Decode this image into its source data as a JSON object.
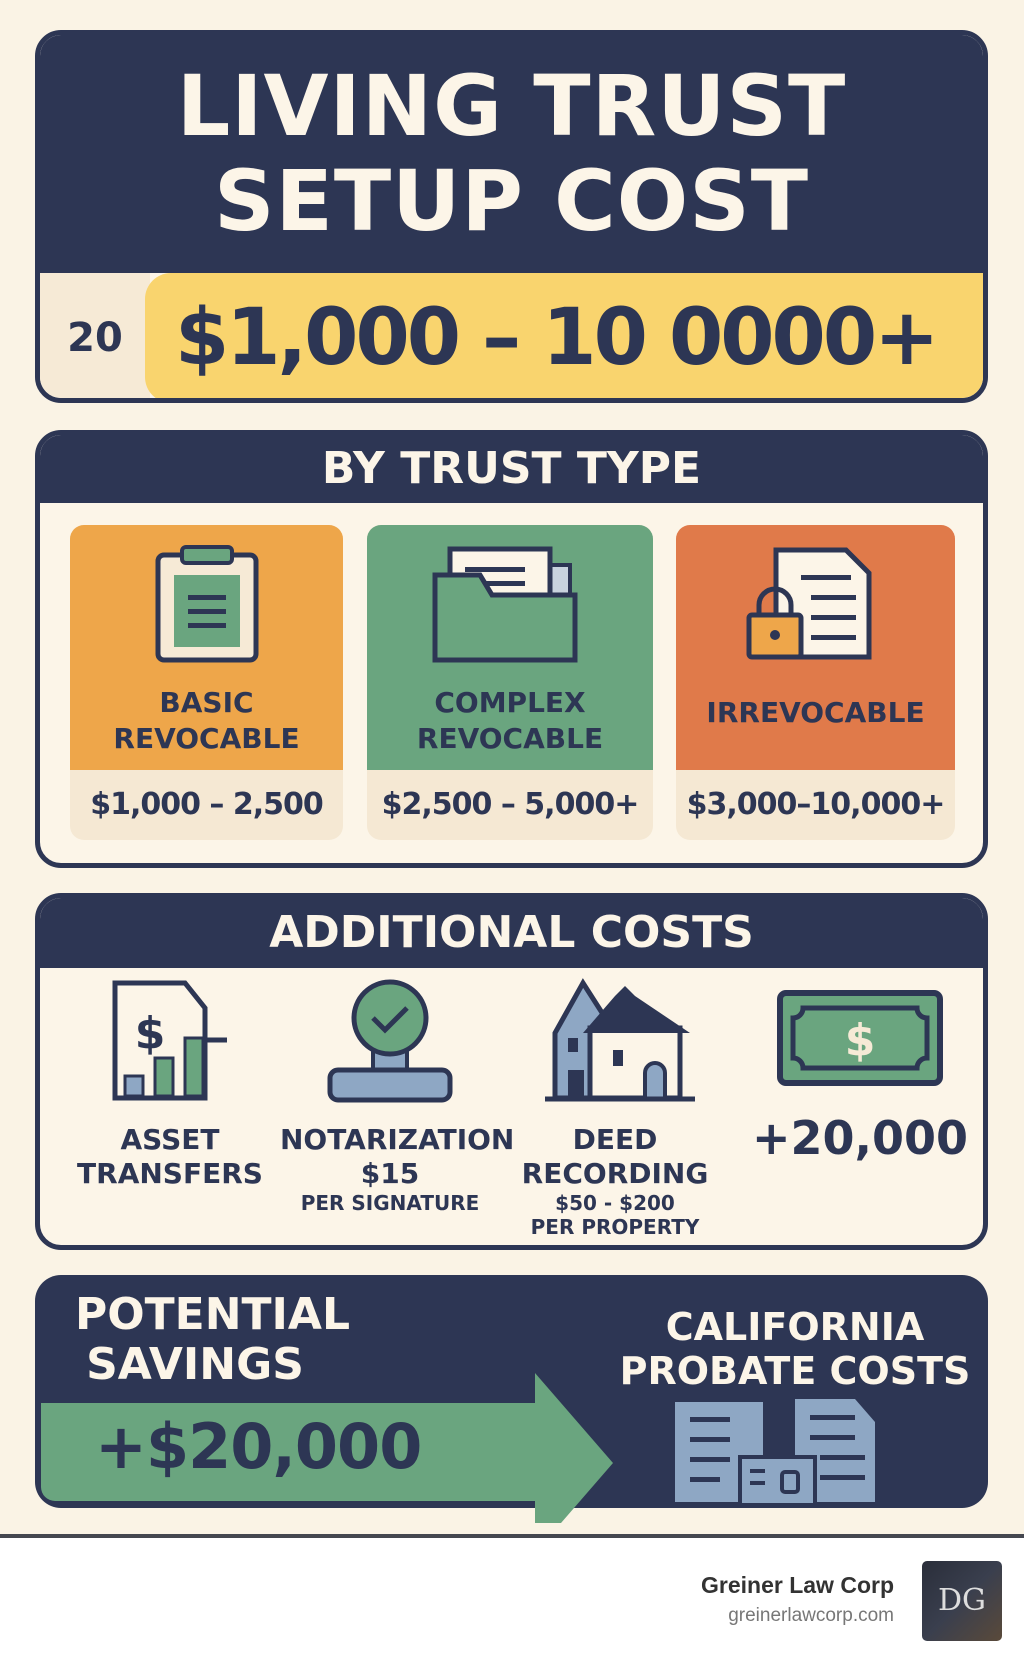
{
  "header": {
    "title_line1": "LIVING TRUST",
    "title_line2": "SETUP COST",
    "prefix": "20",
    "price_range": "$1,000 – 10 0000+"
  },
  "trust_types": {
    "heading": "BY TRUST TYPE",
    "cards": [
      {
        "label_line1": "BASIC",
        "label_line2": "REVOCABLE",
        "price": "$1,000 – 2,500",
        "icon": "clipboard-icon",
        "color": "#eea64a"
      },
      {
        "label_line1": "COMPLEX",
        "label_line2": "REVOCABLE",
        "price": "$2,500 – 5,000+",
        "icon": "folder-documents-icon",
        "color": "#6aa57f"
      },
      {
        "label_line1": "IRREVOCABLE",
        "label_line2": "",
        "price": "$3,000–10,000+",
        "icon": "locked-document-icon",
        "color": "#e07a4a"
      }
    ]
  },
  "additional": {
    "heading": "ADDITIONAL COSTS",
    "items": [
      {
        "line1": "ASSET",
        "line2": "TRANSFERS",
        "icon": "document-chart-icon"
      },
      {
        "line1": "NOTARIZATION",
        "line2": "$15",
        "line3": "PER SIGNATURE",
        "icon": "stamp-icon"
      },
      {
        "line1": "DEED",
        "line2": "RECORDING",
        "line3": "$50 - $200",
        "line4": "PER PROPERTY",
        "icon": "houses-icon"
      },
      {
        "line1": "+20,000",
        "icon": "banknote-icon"
      }
    ]
  },
  "savings": {
    "label_line1": "POTENTIAL",
    "label_line2": "SAVINGS",
    "amount": "+$20,000",
    "right_line1": "CALIFORNIA",
    "right_line2": "PROBATE COSTS",
    "icon": "documents-icon"
  },
  "footer": {
    "company": "Greiner Law Corp",
    "website": "greinerlawcorp.com",
    "logo_text": "DG"
  },
  "colors": {
    "navy": "#2d3654",
    "cream": "#faf3e5",
    "yellow": "#f9d46e",
    "green": "#6aa57f",
    "orange": "#eea64a",
    "red_orange": "#e07a4a",
    "slate_blue": "#8ea7c4"
  }
}
